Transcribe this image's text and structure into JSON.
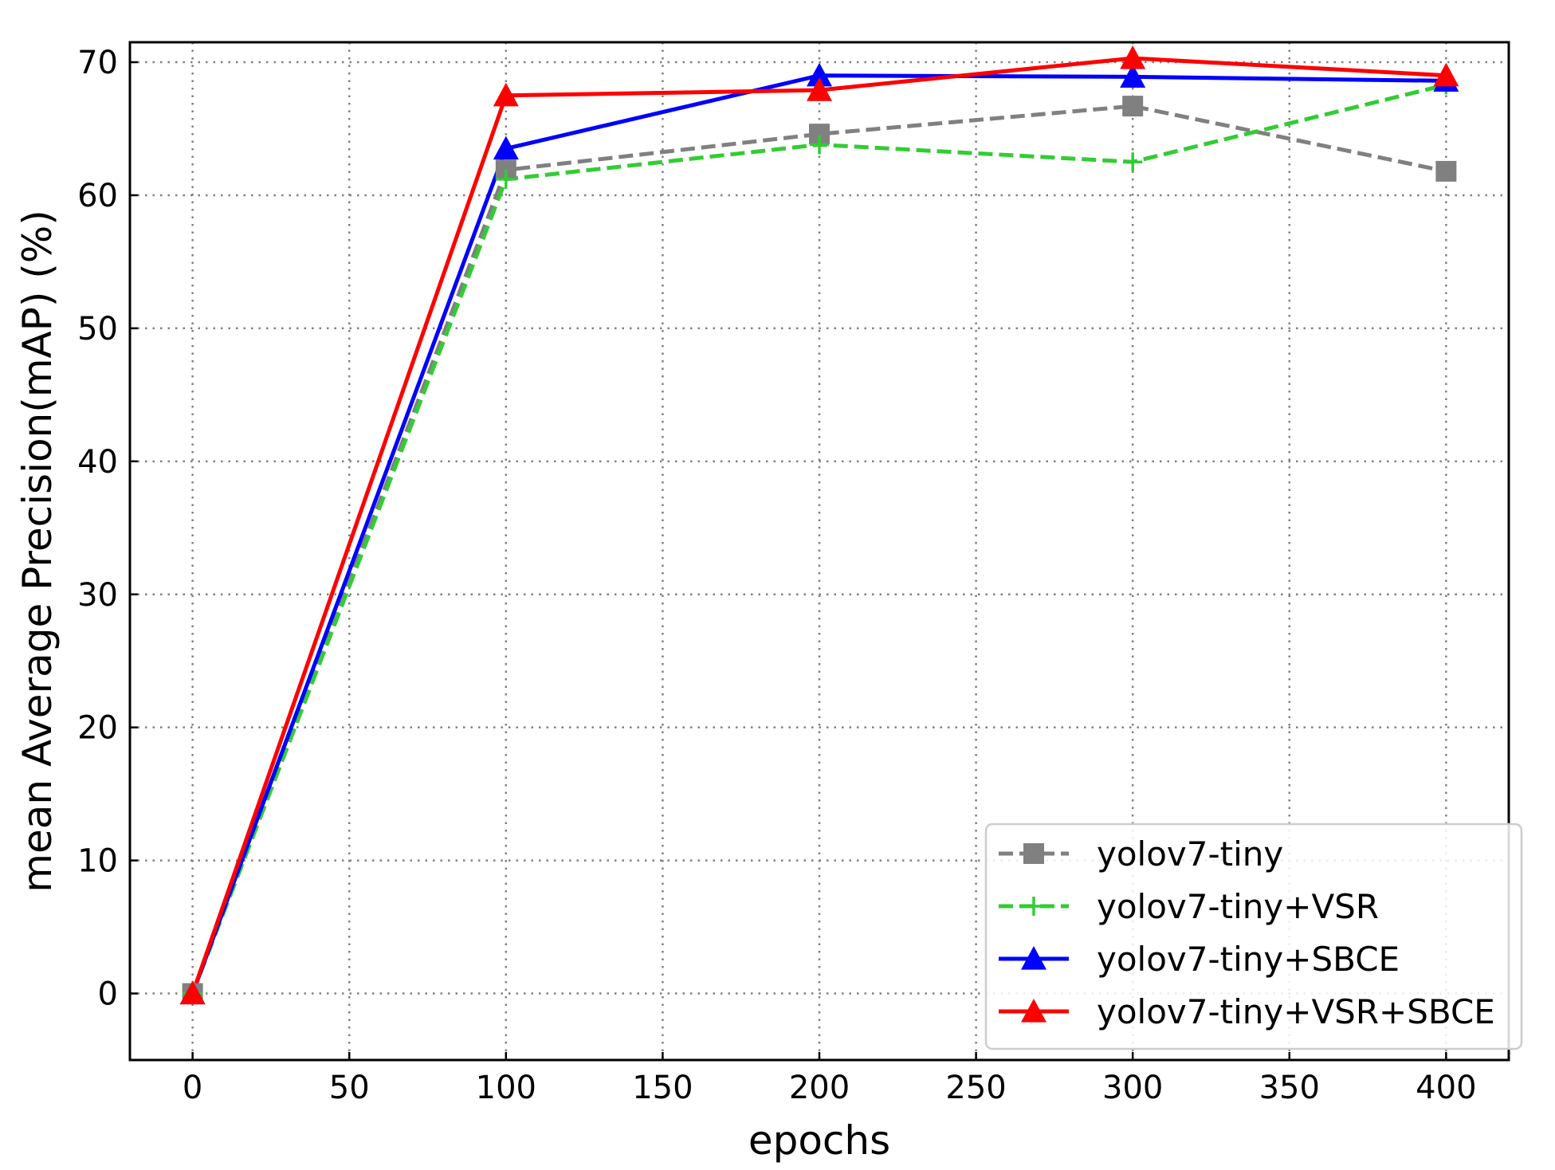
{
  "chart_data": {
    "type": "line",
    "xlabel": "epochs",
    "ylabel": "mean Average Precision(mAP) (%)",
    "xlim": [
      -20,
      420
    ],
    "ylim": [
      -5,
      71.5
    ],
    "xticks": [
      0,
      50,
      100,
      150,
      200,
      250,
      300,
      350,
      400
    ],
    "yticks": [
      0,
      10,
      20,
      30,
      40,
      50,
      60,
      70
    ],
    "grid": true,
    "legend_position": "lower-right",
    "x": [
      0,
      100,
      200,
      300,
      400
    ],
    "series": [
      {
        "name": "yolov7-tiny",
        "values": [
          0,
          61.9,
          64.6,
          66.7,
          61.8
        ],
        "color": "#808080",
        "line_style": "dashed",
        "marker": "square"
      },
      {
        "name": "yolov7-tiny+VSR",
        "values": [
          0,
          61.2,
          63.8,
          62.5,
          68.3
        ],
        "color": "#33cc33",
        "line_style": "dashed",
        "marker": "plus"
      },
      {
        "name": "yolov7-tiny+SBCE",
        "values": [
          0,
          63.5,
          69.0,
          68.9,
          68.6
        ],
        "color": "#0000ff",
        "line_style": "solid",
        "marker": "triangle"
      },
      {
        "name": "yolov7-tiny+VSR+SBCE",
        "values": [
          0,
          67.5,
          67.9,
          70.3,
          69.0
        ],
        "color": "#ff0000",
        "line_style": "solid",
        "marker": "triangle"
      }
    ]
  }
}
